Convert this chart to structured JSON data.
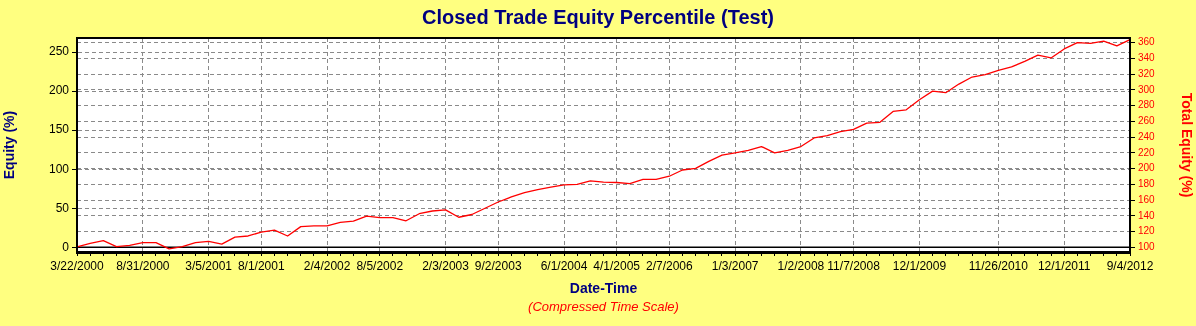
{
  "chart_data": {
    "type": "line",
    "title": "Closed Trade Equity Percentile (Test)",
    "xlabel": "Date-Time",
    "ylabel": "Equity (%)",
    "y2label": "Total Equity (%)",
    "annotations": [
      "(Compressed Time Scale)"
    ],
    "categories": [
      "3/22/2000",
      null,
      null,
      null,
      null,
      "8/31/2000",
      null,
      null,
      null,
      null,
      "3/5/2001",
      null,
      null,
      null,
      "8/1/2001",
      null,
      null,
      null,
      null,
      "2/4/2002",
      null,
      null,
      null,
      "8/5/2002",
      null,
      null,
      null,
      null,
      "2/3/2003",
      null,
      null,
      null,
      "9/2/2003",
      null,
      null,
      null,
      null,
      "6/1/2004",
      null,
      null,
      null,
      "4/1/2005",
      null,
      null,
      null,
      "2/7/2006",
      null,
      null,
      null,
      null,
      "1/3/2007",
      null,
      null,
      null,
      null,
      "1/2/2008",
      null,
      null,
      null,
      "11/7/2008",
      null,
      null,
      null,
      null,
      "12/1/2009",
      null,
      null,
      null,
      null,
      null,
      "11/26/2010",
      null,
      null,
      null,
      null,
      "12/1/2011",
      null,
      null,
      null,
      null,
      "9/4/2012"
    ],
    "series": [
      {
        "color": "#ff0000",
        "values": [
          0.5,
          5,
          8.5,
          1,
          2.5,
          6,
          6,
          -2,
          1,
          6,
          7.5,
          4,
          13,
          14.5,
          19.5,
          22,
          14.5,
          26.5,
          27.5,
          27.5,
          32,
          33.5,
          40,
          38,
          38,
          34,
          43,
          46.5,
          48,
          38.5,
          42,
          50,
          58,
          64.5,
          70,
          74,
          77,
          80,
          80.5,
          85,
          83.5,
          83,
          81.5,
          87,
          87,
          91,
          99,
          101,
          110,
          118,
          121,
          124,
          129,
          121,
          124,
          129,
          140,
          143,
          148,
          151,
          159,
          160,
          174,
          176,
          189,
          200,
          198,
          209,
          218,
          221,
          226.5,
          231,
          238,
          246,
          242.5,
          254,
          262,
          261,
          264,
          258,
          266
        ]
      }
    ],
    "ylim": [
      -6,
      268
    ],
    "yticks": [
      0,
      50,
      100,
      150,
      200,
      250
    ],
    "y2lim": [
      94,
      366
    ],
    "y2ticks": [
      100,
      120,
      140,
      160,
      180,
      200,
      220,
      240,
      260,
      280,
      300,
      320,
      340,
      360
    ],
    "ref_lines": [
      {
        "axis": "y",
        "value": 0,
        "color": "#000000"
      }
    ],
    "grid": true,
    "legend": false,
    "marker": "none",
    "line_style": "solid"
  }
}
